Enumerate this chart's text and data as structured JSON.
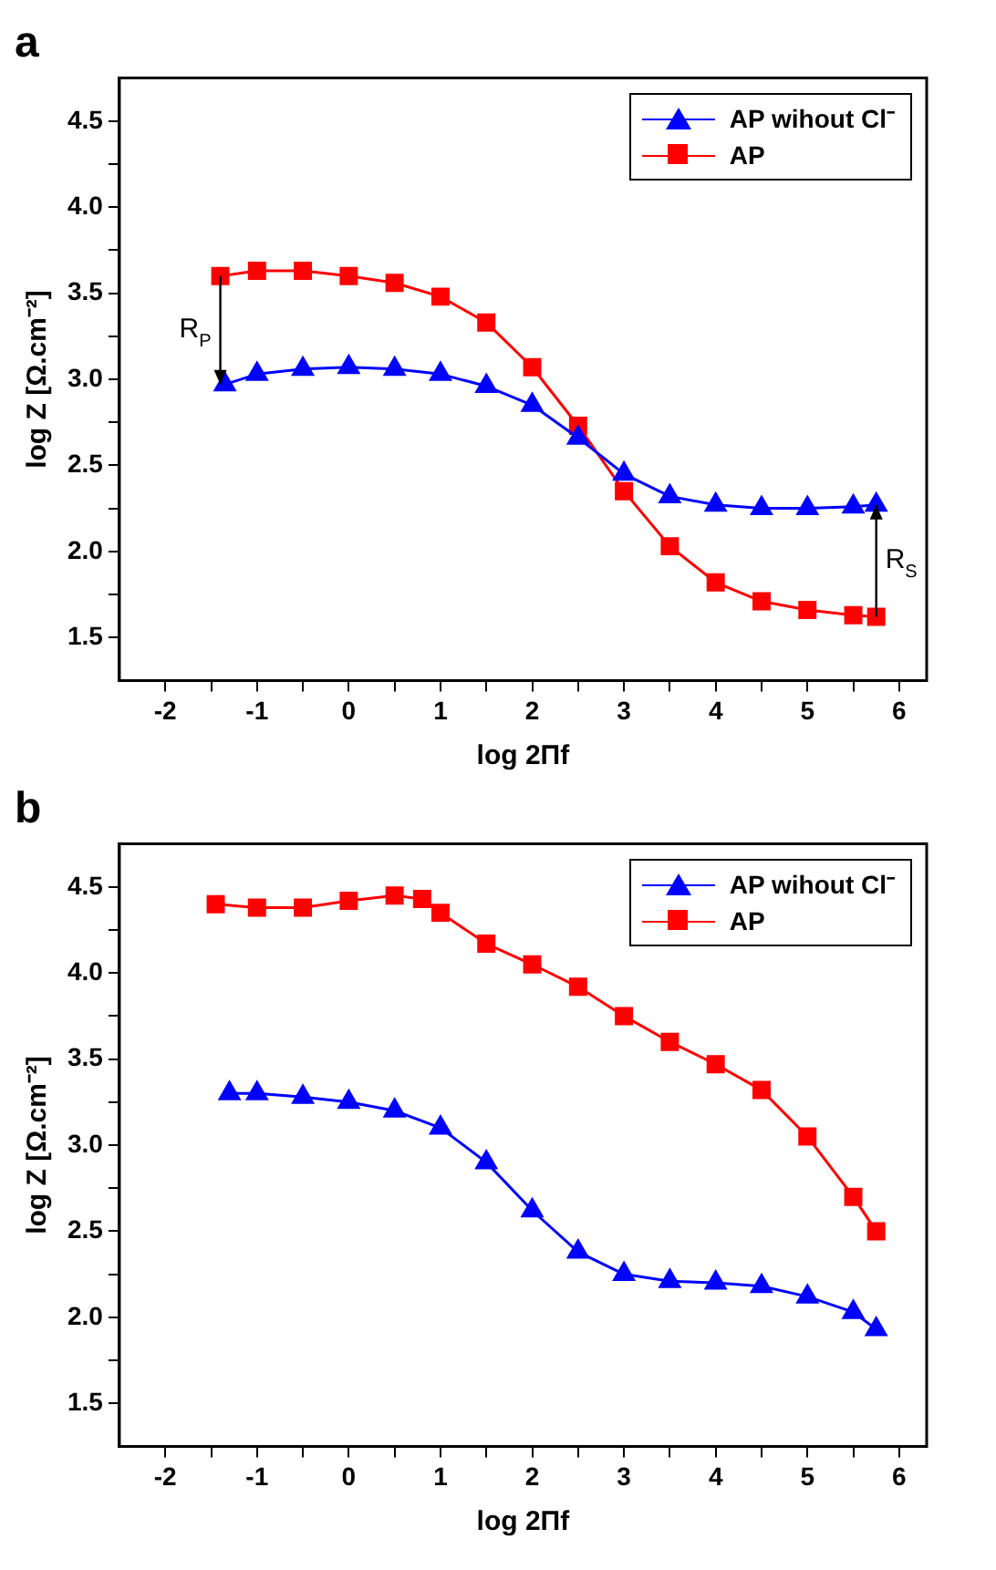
{
  "chart_data": [
    {
      "type": "line",
      "title": "a",
      "xlabel": "log 2Πf",
      "ylabel": "log Z [Ω.cm⁻²]",
      "xlim": [
        -2.5,
        6.3
      ],
      "ylim": [
        1.25,
        4.75
      ],
      "xticks": [
        -2,
        {
          "value": -1.5,
          "label": null
        },
        -1,
        {
          "value": -0.5,
          "label": null
        },
        0,
        {
          "value": 0.5,
          "label": null
        },
        1,
        {
          "value": 1.5,
          "label": null
        },
        2,
        {
          "value": 2.5,
          "label": null
        },
        3,
        {
          "value": 3.5,
          "label": null
        },
        4,
        {
          "value": 4.5,
          "label": null
        },
        5,
        {
          "value": 5.5,
          "label": null
        },
        6
      ],
      "yticks": [
        1.5,
        {
          "value": 1.75,
          "label": null
        },
        {
          "value": 2,
          "label": "2.0"
        },
        {
          "value": 2.25,
          "label": null
        },
        2.5,
        {
          "value": 2.75,
          "label": null
        },
        {
          "value": 3,
          "label": "3.0"
        },
        {
          "value": 3.25,
          "label": null
        },
        3.5,
        {
          "value": 3.75,
          "label": null
        },
        {
          "value": 4,
          "label": "4.0"
        },
        {
          "value": 4.25,
          "label": null
        },
        4.5
      ],
      "grid": false,
      "legend": "top right",
      "line_style": "solid",
      "annotations": [
        {
          "text": "R$_{P}$",
          "x": -1.4,
          "y": 3.6
        },
        {
          "text": "R$_{S}$",
          "x": 5.75,
          "y": 1.62
        }
      ],
      "series": [
        {
          "name": "AP wihout Cl⁻",
          "color": "#0000ff",
          "marker": "triangle",
          "x": [
            -1.35,
            -1,
            -0.5,
            0,
            0.5,
            1,
            1.5,
            2,
            2.5,
            3,
            3.5,
            4,
            4.5,
            5,
            5.5,
            5.75
          ],
          "values": [
            2.97,
            3.03,
            3.06,
            3.07,
            3.06,
            3.03,
            2.96,
            2.85,
            2.66,
            2.45,
            2.32,
            2.27,
            2.25,
            2.25,
            2.26,
            2.27
          ]
        },
        {
          "name": "AP",
          "color": "#ff0000",
          "marker": "square",
          "x": [
            -1.4,
            -1,
            -0.5,
            0,
            0.5,
            1,
            1.5,
            2,
            2.5,
            3,
            3.5,
            4,
            4.5,
            5,
            5.5,
            5.75
          ],
          "values": [
            3.6,
            3.63,
            3.63,
            3.6,
            3.56,
            3.48,
            3.33,
            3.07,
            2.73,
            2.35,
            2.03,
            1.82,
            1.71,
            1.66,
            1.63,
            1.62
          ]
        }
      ]
    },
    {
      "type": "line",
      "title": "b",
      "xlabel": "log 2Πf",
      "ylabel": "log Z [Ω.cm⁻²]",
      "xlim": [
        -2.5,
        6.3
      ],
      "ylim": [
        1.25,
        4.75
      ],
      "xticks": [
        -2,
        {
          "value": -1.5,
          "label": null
        },
        -1,
        {
          "value": -0.5,
          "label": null
        },
        0,
        {
          "value": 0.5,
          "label": null
        },
        1,
        {
          "value": 1.5,
          "label": null
        },
        2,
        {
          "value": 2.5,
          "label": null
        },
        3,
        {
          "value": 3.5,
          "label": null
        },
        4,
        {
          "value": 4.5,
          "label": null
        },
        5,
        {
          "value": 5.5,
          "label": null
        },
        6
      ],
      "yticks": [
        1.5,
        {
          "value": 1.75,
          "label": null
        },
        {
          "value": 2,
          "label": "2.0"
        },
        {
          "value": 2.25,
          "label": null
        },
        2.5,
        {
          "value": 2.75,
          "label": null
        },
        {
          "value": 3,
          "label": "3.0"
        },
        {
          "value": 3.25,
          "label": null
        },
        3.5,
        {
          "value": 3.75,
          "label": null
        },
        {
          "value": 4,
          "label": "4.0"
        },
        {
          "value": 4.25,
          "label": null
        },
        4.5
      ],
      "grid": false,
      "legend": "top right",
      "line_style": "solid",
      "series": [
        {
          "name": "AP wihout Cl⁻",
          "color": "#0000ff",
          "marker": "triangle",
          "x": [
            -1.3,
            -1,
            -0.5,
            0,
            0.5,
            1,
            1.5,
            2,
            2.5,
            3,
            3.5,
            4,
            4.5,
            5,
            5.5,
            5.75
          ],
          "values": [
            3.3,
            3.3,
            3.28,
            3.25,
            3.2,
            3.1,
            2.9,
            2.62,
            2.38,
            2.25,
            2.21,
            2.2,
            2.18,
            2.12,
            2.03,
            1.93
          ]
        },
        {
          "name": "AP",
          "color": "#ff0000",
          "marker": "square",
          "x": [
            -1.45,
            -1,
            -0.5,
            0,
            0.5,
            0.8,
            1,
            1.5,
            2,
            2.5,
            3,
            3.5,
            4,
            4.5,
            5,
            5.5,
            5.75
          ],
          "values": [
            4.4,
            4.38,
            4.38,
            4.42,
            4.45,
            4.43,
            4.35,
            4.17,
            4.05,
            3.92,
            3.75,
            3.6,
            3.47,
            3.32,
            3.05,
            2.7,
            2.5
          ]
        }
      ]
    }
  ]
}
